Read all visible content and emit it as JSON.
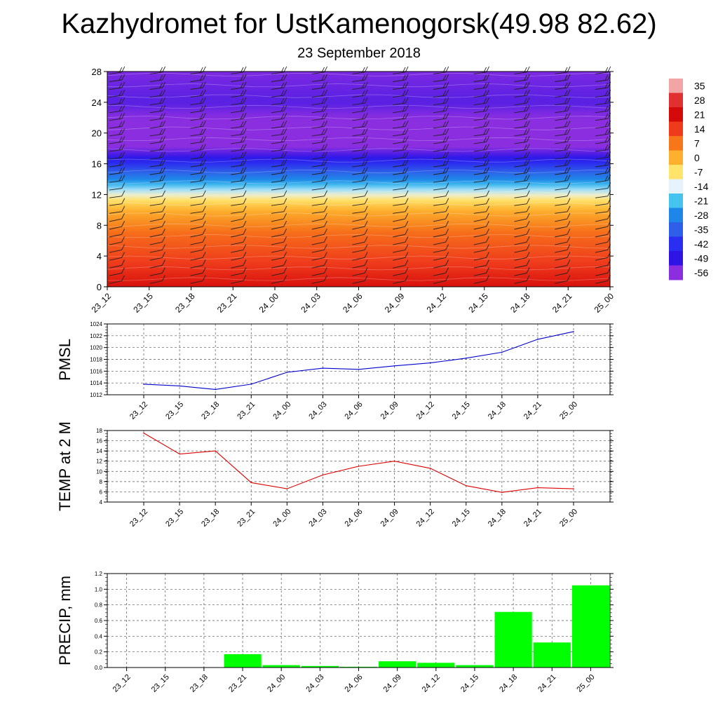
{
  "title": "Kazhydromet for UstKamenogorsk(49.98 82.62)",
  "subtitle": "23 September 2018",
  "chart_data": [
    {
      "type": "heatmap",
      "x_labels": [
        "23_12",
        "23_15",
        "23_18",
        "23_21",
        "24_00",
        "24_03",
        "24_06",
        "24_09",
        "24_12",
        "24_15",
        "24_18",
        "24_21",
        "25_00"
      ],
      "y_ticks": [
        "0",
        "4",
        "8",
        "12",
        "16",
        "20",
        "24",
        "28"
      ],
      "ylim": [
        0,
        28
      ],
      "colorbar": {
        "labels": [
          "35",
          "28",
          "21",
          "14",
          "7",
          "0",
          "-7",
          "-14",
          "-21",
          "-28",
          "-35",
          "-42",
          "-49",
          "-56"
        ],
        "colors": [
          "#f2a5a5",
          "#e03030",
          "#d40a0a",
          "#ef3a1c",
          "#f7761a",
          "#fdb02e",
          "#ffe36a",
          "#e6f3fb",
          "#47c3f0",
          "#1d86e8",
          "#2f5fe8",
          "#2a2ef0",
          "#2f14e6",
          "#8a2ee0"
        ]
      },
      "field_profile": [
        {
          "level": 0,
          "value": 20
        },
        {
          "level": 3,
          "value": 14
        },
        {
          "level": 7,
          "value": 8
        },
        {
          "level": 10,
          "value": 0
        },
        {
          "level": 11.3,
          "value": -7
        },
        {
          "level": 12.5,
          "value": -16
        },
        {
          "level": 14,
          "value": -28
        },
        {
          "level": 16,
          "value": -42
        },
        {
          "level": 18,
          "value": -56
        },
        {
          "level": 21,
          "value": -58
        },
        {
          "level": 24,
          "value": -52
        },
        {
          "level": 28,
          "value": -55
        }
      ]
    },
    {
      "type": "line",
      "ylabel": "PMSL",
      "categories": [
        "23_12",
        "23_15",
        "23_18",
        "23_21",
        "24_00",
        "24_03",
        "24_06",
        "24_09",
        "24_12",
        "24_15",
        "24_18",
        "24_21",
        "25_00"
      ],
      "values": [
        1013.8,
        1013.5,
        1012.9,
        1013.8,
        1015.8,
        1016.5,
        1016.3,
        1016.9,
        1017.4,
        1018.2,
        1019.2,
        1021.4,
        1022.7
      ],
      "ylim": [
        1012,
        1024
      ],
      "yticks": [
        "1012",
        "1014",
        "1016",
        "1018",
        "1020",
        "1022",
        "1024"
      ],
      "color": "#0000cc",
      "grid": true
    },
    {
      "type": "line",
      "ylabel": "TEMP at 2 M",
      "categories": [
        "23_12",
        "23_15",
        "23_18",
        "23_21",
        "24_00",
        "24_03",
        "24_06",
        "24_09",
        "24_12",
        "24_15",
        "24_18",
        "24_21",
        "25_00"
      ],
      "values": [
        17.5,
        13.4,
        14.0,
        7.8,
        6.6,
        9.3,
        11.0,
        12.0,
        10.6,
        7.2,
        5.9,
        6.8,
        6.6
      ],
      "ylim": [
        4,
        18
      ],
      "yticks": [
        "4",
        "6",
        "8",
        "10",
        "12",
        "14",
        "16",
        "18"
      ],
      "color": "#e00000",
      "grid": true
    },
    {
      "type": "bar",
      "ylabel": "PRECIP, mm",
      "categories": [
        "23_12",
        "23_15",
        "23_18",
        "23_21",
        "24_00",
        "24_03",
        "24_06",
        "24_09",
        "24_12",
        "24_15",
        "24_18",
        "24_21",
        "25_00"
      ],
      "values": [
        0,
        0,
        0,
        0.17,
        0.03,
        0.02,
        0.01,
        0.08,
        0.06,
        0.03,
        0.71,
        0.32,
        1.05
      ],
      "ylim": [
        0,
        1.2
      ],
      "yticks": [
        "0.0",
        "0.2",
        "0.4",
        "0.6",
        "0.8",
        "1.0",
        "1.2"
      ],
      "color": "#00ff00",
      "grid": true
    }
  ]
}
